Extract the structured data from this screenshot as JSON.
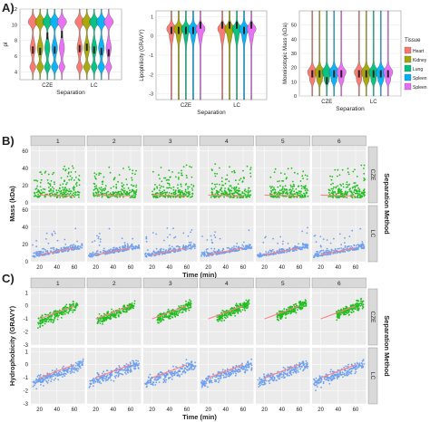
{
  "panel_labels": [
    "A)",
    "B)",
    "C)"
  ],
  "tissue_colors": {
    "Heart": "#f8766d",
    "Kidney": "#a3a500",
    "Lung": "#00bf7d",
    "Spleen": "#00b0f6",
    "Spleen2": "#e76bf3"
  },
  "cze_color": "#1fbf1f",
  "lc_color": "#6fa0f0",
  "trend_color": "#ff8080",
  "chart_data": [
    {
      "type": "violin",
      "panel": "A",
      "xlabel": "Separation",
      "ylabel": "pI",
      "categories": [
        "CZE",
        "LC"
      ],
      "series_names": [
        "Heart",
        "Kidney",
        "Lung",
        "Spleen",
        "Spleen"
      ],
      "ylim": [
        3,
        12
      ],
      "yticks": [
        4,
        6,
        8,
        10,
        12
      ],
      "medians": {
        "CZE": [
          6.8,
          6.6,
          8.5,
          6.8,
          8.8
        ],
        "LC": [
          7.0,
          7.2,
          6.8,
          6.6,
          6.4
        ]
      }
    },
    {
      "type": "violin",
      "panel": "A",
      "xlabel": "Separation",
      "ylabel": "Lipophilicity (GRAVY)",
      "categories": [
        "CZE",
        "LC"
      ],
      "ylim": [
        -3.3,
        1.3
      ],
      "yticks": [
        -3,
        -2,
        -1,
        0,
        1
      ],
      "medians": {
        "CZE": [
          -0.5,
          -0.5,
          -0.5,
          -0.5,
          0.0
        ],
        "LC": [
          0.0,
          0.0,
          0.0,
          -0.5,
          0.0
        ]
      }
    },
    {
      "type": "violin",
      "panel": "A",
      "xlabel": "Separation",
      "ylabel": "Monoisotopic Mass (kDa)",
      "categories": [
        "CZE",
        "LC"
      ],
      "ylim": [
        0,
        60
      ],
      "yticks": [
        0,
        10,
        20,
        30,
        40,
        50
      ],
      "medians": {
        "CZE": [
          15,
          15,
          10,
          15,
          15
        ],
        "LC": [
          15,
          15,
          15,
          15,
          15
        ]
      },
      "legend": {
        "title": "Tissue",
        "entries": [
          "Heart",
          "Kidney",
          "Lung",
          "Spleen",
          "Spleen"
        ],
        "placement": "right"
      }
    },
    {
      "type": "scatter",
      "panel": "B",
      "facets": [
        "1",
        "2",
        "3",
        "4",
        "5",
        "6"
      ],
      "rows": [
        "CZE",
        "LC"
      ],
      "strip_right": "Separation Method",
      "xlabel": "Time (min)",
      "ylabel": "Mass (kDa)",
      "xlim": [
        10,
        72
      ],
      "xticks": [
        20,
        40,
        60
      ],
      "ylim": [
        0,
        65
      ],
      "yticks": [
        0,
        20,
        40,
        60
      ],
      "trend": {
        "CZE": [
          [
            20,
            9
          ],
          [
            60,
            8
          ]
        ],
        "LC": [
          [
            20,
            8
          ],
          [
            60,
            16
          ]
        ]
      }
    },
    {
      "type": "scatter",
      "panel": "C",
      "facets": [
        "1",
        "2",
        "3",
        "4",
        "5",
        "6"
      ],
      "rows": [
        "CZE",
        "LC"
      ],
      "strip_right": "Separation Method",
      "xlabel": "Time (min)",
      "ylabel": "Hydrophobicity (GRAVY)",
      "xlim": [
        10,
        72
      ],
      "xticks": [
        20,
        40,
        60
      ],
      "ylim": [
        -3,
        1.3
      ],
      "yticks": [
        -3,
        -2,
        -1,
        0,
        1
      ],
      "trend": {
        "CZE": [
          [
            20,
            -1.0
          ],
          [
            60,
            0.0
          ]
        ],
        "LC": [
          [
            20,
            -1.0
          ],
          [
            60,
            0.0
          ]
        ]
      }
    }
  ]
}
